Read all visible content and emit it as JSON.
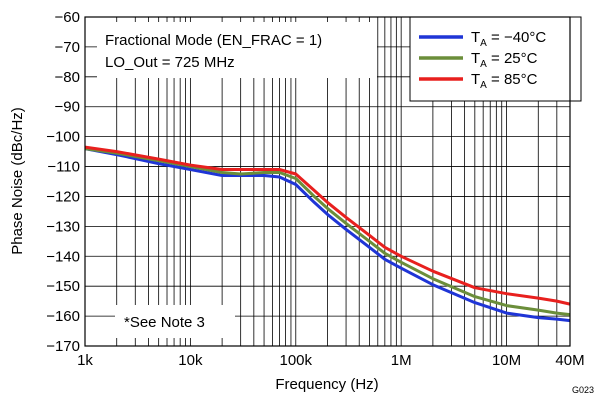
{
  "chart_data": {
    "type": "line",
    "xscale": "log",
    "xlim": [
      1000,
      40000000
    ],
    "ylim": [
      -170,
      -60
    ],
    "xlabel": "Frequency (Hz)",
    "ylabel": "Phase Noise (dBc/Hz)",
    "x_tick_labels": [
      "1k",
      "10k",
      "100k",
      "1M",
      "10M",
      "40M"
    ],
    "y_tick_labels": [
      "−60",
      "−70",
      "−80",
      "−90",
      "−100",
      "−110",
      "−120",
      "−130",
      "−140",
      "−150",
      "−160",
      "−170"
    ],
    "grid": true,
    "legend_position": "top-right",
    "annotations": [
      "Fractional Mode (EN_FRAC = 1)",
      "LO_Out = 725 MHz",
      "*See Note 3"
    ],
    "figure_id": "G023",
    "x": [
      1000,
      2000,
      5000,
      10000,
      20000,
      30000,
      50000,
      70000,
      100000,
      150000,
      200000,
      300000,
      500000,
      700000,
      1000000,
      2000000,
      5000000,
      10000000,
      20000000,
      30000000,
      40000000
    ],
    "series": [
      {
        "name_prefix": "T",
        "name_sub": "A",
        "name_suffix": " = −40°C",
        "color": "#1f35d6",
        "values": [
          -104,
          -106,
          -109,
          -111,
          -113,
          -113,
          -113,
          -113.5,
          -116,
          -122,
          -126,
          -131,
          -137,
          -141,
          -144,
          -149.5,
          -155.5,
          -159,
          -160.5,
          -161,
          -161.5
        ]
      },
      {
        "name_prefix": "T",
        "name_sub": "A",
        "name_suffix": " = 25°C",
        "color": "#6b8e3a",
        "values": [
          -104,
          -105.5,
          -108,
          -110,
          -112,
          -112.5,
          -112,
          -112,
          -114,
          -120,
          -124,
          -129,
          -135,
          -139,
          -142,
          -147.5,
          -153.5,
          -156.5,
          -158,
          -159,
          -159.5
        ]
      },
      {
        "name_prefix": "T",
        "name_sub": "A",
        "name_suffix": " = 85°C",
        "color": "#e8201e",
        "values": [
          -103.5,
          -105,
          -107.5,
          -109.5,
          -111,
          -111,
          -111,
          -111,
          -112.5,
          -118,
          -122,
          -127,
          -133,
          -137,
          -140,
          -145,
          -150.5,
          -152.5,
          -154,
          -155,
          -156
        ]
      }
    ]
  }
}
